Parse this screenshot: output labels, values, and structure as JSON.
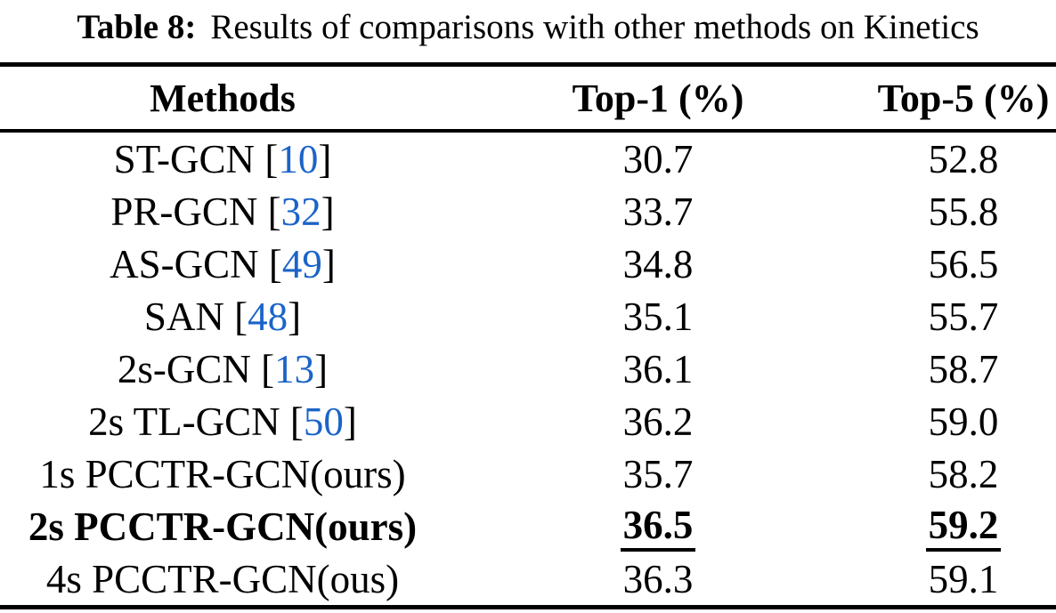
{
  "caption": {
    "label": "Table 8:",
    "text": "Results of comparisons with other methods on Kinetics"
  },
  "table": {
    "columns": [
      "Methods",
      "Top-1 (%)",
      "Top-5 (%)"
    ],
    "rows": [
      {
        "method": "ST-GCN",
        "citation": "10",
        "top1": "30.7",
        "top5": "52.8",
        "emphasis": false,
        "underline": false
      },
      {
        "method": "PR-GCN",
        "citation": "32",
        "top1": "33.7",
        "top5": "55.8",
        "emphasis": false,
        "underline": false
      },
      {
        "method": "AS-GCN",
        "citation": "49",
        "top1": "34.8",
        "top5": "56.5",
        "emphasis": false,
        "underline": false
      },
      {
        "method": "SAN",
        "citation": "48",
        "top1": "35.1",
        "top5": "55.7",
        "emphasis": false,
        "underline": false
      },
      {
        "method": "2s-GCN",
        "citation": "13",
        "top1": "36.1",
        "top5": "58.7",
        "emphasis": false,
        "underline": false
      },
      {
        "method": "2s TL-GCN",
        "citation": "50",
        "top1": "36.2",
        "top5": "59.0",
        "emphasis": false,
        "underline": false
      },
      {
        "method": "1s PCCTR-GCN(ours)",
        "citation": null,
        "top1": "35.7",
        "top5": "58.2",
        "emphasis": false,
        "underline": false
      },
      {
        "method": "2s PCCTR-GCN(ours)",
        "citation": null,
        "top1": "36.5",
        "top5": "59.2",
        "emphasis": true,
        "underline": true
      },
      {
        "method": "4s PCCTR-GCN(ous)",
        "citation": null,
        "top1": "36.3",
        "top5": "59.1",
        "emphasis": false,
        "underline": false
      }
    ]
  },
  "colors": {
    "background": "#ffffff",
    "text": "#000000",
    "rule": "#000000",
    "citation": "#1b64c8"
  }
}
